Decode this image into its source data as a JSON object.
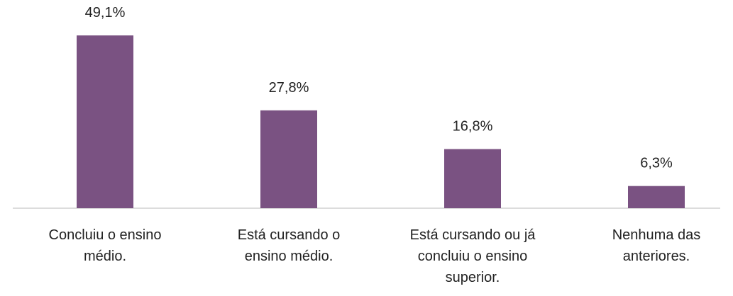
{
  "chart_data": {
    "type": "bar",
    "categories": [
      "Concluiu o ensino médio.",
      "Está cursando o ensino médio.",
      "Está cursando ou já concluiu o ensino superior.",
      "Nenhuma das anteriores."
    ],
    "values": [
      49.1,
      27.8,
      16.8,
      6.3
    ],
    "value_labels": [
      "49,1%",
      "27,8%",
      "16,8%",
      "6,3%"
    ],
    "color": "#7a5282"
  }
}
